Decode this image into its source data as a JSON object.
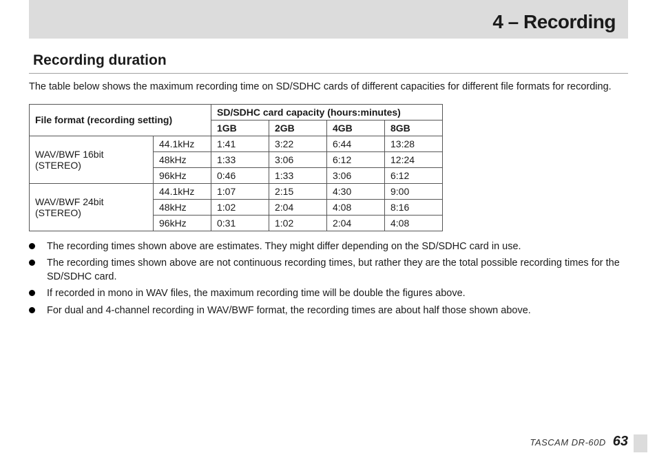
{
  "header": {
    "title": "4 – Recording"
  },
  "section": {
    "title": "Recording duration"
  },
  "intro": "The table below shows the maximum recording time on SD/SDHC cards of different capacities for different file formats for recording.",
  "table": {
    "format_header": "File format (recording setting)",
    "capacity_header": "SD/SDHC card capacity (hours:minutes)",
    "capacity_cols": [
      "1GB",
      "2GB",
      "4GB",
      "8GB"
    ],
    "groups": [
      {
        "format": "WAV/BWF 16bit (STEREO)",
        "rows": [
          {
            "rate": "44.1kHz",
            "vals": [
              "1:41",
              "3:22",
              "6:44",
              "13:28"
            ]
          },
          {
            "rate": "48kHz",
            "vals": [
              "1:33",
              "3:06",
              "6:12",
              "12:24"
            ]
          },
          {
            "rate": "96kHz",
            "vals": [
              "0:46",
              "1:33",
              "3:06",
              "6:12"
            ]
          }
        ]
      },
      {
        "format": "WAV/BWF 24bit (STEREO)",
        "rows": [
          {
            "rate": "44.1kHz",
            "vals": [
              "1:07",
              "2:15",
              "4:30",
              "9:00"
            ]
          },
          {
            "rate": "48kHz",
            "vals": [
              "1:02",
              "2:04",
              "4:08",
              "8:16"
            ]
          },
          {
            "rate": "96kHz",
            "vals": [
              "0:31",
              "1:02",
              "2:04",
              "4:08"
            ]
          }
        ]
      }
    ]
  },
  "bullets": [
    "The recording times shown above are estimates. They might differ depending on the SD/SDHC card in use.",
    "The recording times shown above are not continuous recording times, but rather they are the total possible recording times for the SD/SDHC card.",
    "If recorded in mono in WAV files, the maximum recording time will be double the figures above.",
    "For dual and 4-channel recording in WAV/BWF format, the recording times are about half those shown above."
  ],
  "footer": {
    "model": "TASCAM  DR-60D",
    "page": "63"
  },
  "style": {
    "header_bg": "#dcdcdc",
    "border_color": "#555555",
    "text_color": "#1a1a1a",
    "page_bg": "#ffffff",
    "header_fontsize": 28,
    "section_fontsize": 21,
    "body_fontsize": 14.5,
    "table_fontsize": 14
  }
}
